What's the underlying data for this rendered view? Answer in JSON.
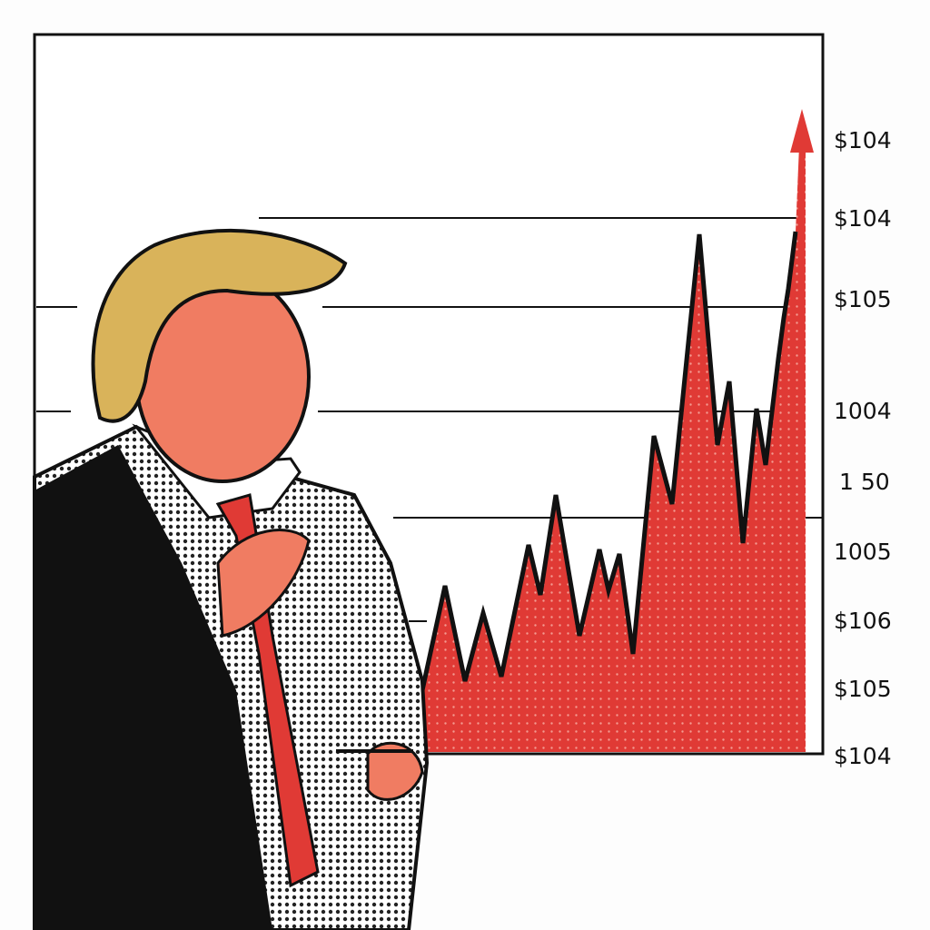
{
  "axis_labels": [
    "$104",
    "$104",
    "$105",
    "1004",
    "1 50",
    "1005",
    "$106",
    "$105",
    "$104"
  ]
}
